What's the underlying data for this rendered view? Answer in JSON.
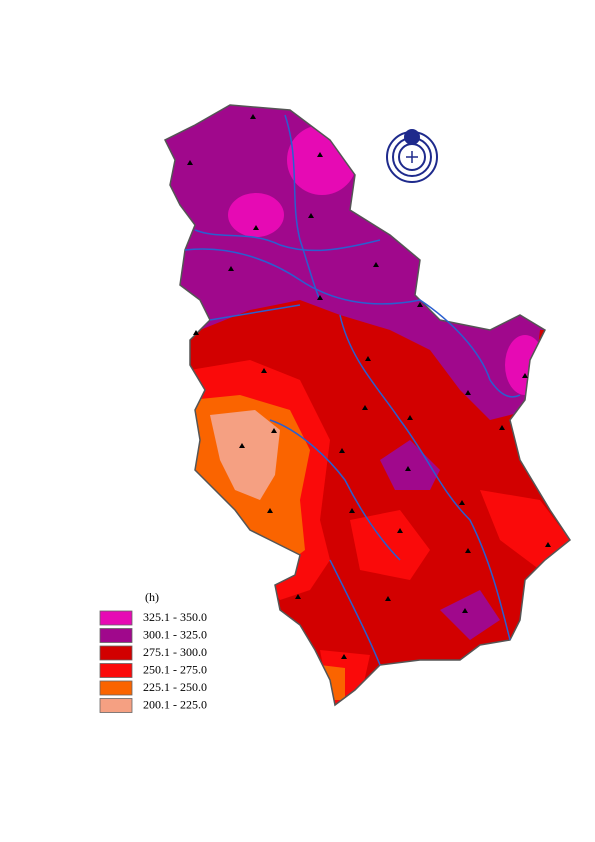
{
  "legend": {
    "title": "(h)",
    "items": [
      {
        "label": "325.1 - 350.0",
        "color": "#e60ab4"
      },
      {
        "label": "300.1 - 325.0",
        "color": "#a0088c"
      },
      {
        "label": "275.1 - 300.0",
        "color": "#d20000"
      },
      {
        "label": "250.1 - 275.0",
        "color": "#fa0a0a"
      },
      {
        "label": "225.1 - 250.0",
        "color": "#fa6400"
      },
      {
        "label": "200.1 - 225.0",
        "color": "#f5a082"
      }
    ]
  }
}
